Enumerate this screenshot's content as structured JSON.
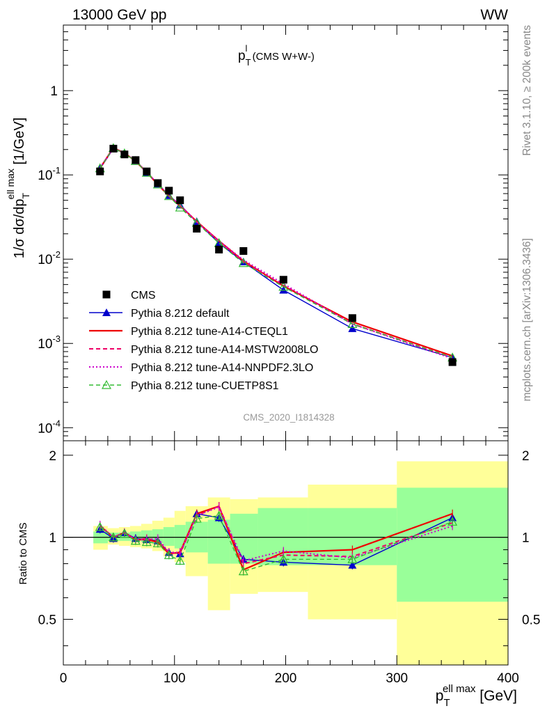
{
  "header": {
    "left": "13000 GeV pp",
    "right": "WW"
  },
  "side_texts": {
    "rivet": "Rivet 3.1.10, ≥ 200k events",
    "mcplots": "mcplots.cern.ch [arXiv:1306.3436]"
  },
  "plot_title": {
    "main": "p",
    "sub": "T",
    "sup": "l",
    "rest": " (CMS W+W-)"
  },
  "watermark": "CMS_2020_I1814328",
  "colors": {
    "cms": "#000000",
    "default": "#0000cc",
    "cteql1": "#ee0000",
    "mstw": "#ee0066",
    "nnpdf": "#cc00cc",
    "cuetp8s1": "#33bb33",
    "band_inner": "#99ff99",
    "band_outer": "#ffff99"
  },
  "chart_data": [
    {
      "type": "line",
      "yscale": "log",
      "ylabel": "1/σ dσ/dp_T^{ell max} [1/GeV]",
      "xlim": [
        0,
        400
      ],
      "ylim": [
        7e-05,
        6
      ],
      "y_tick_labels": [
        "1",
        "10^-1",
        "10^-2",
        "10^-3",
        "10^-4"
      ],
      "x": [
        33,
        45,
        55,
        65,
        75,
        85,
        95,
        105,
        120,
        140,
        162,
        198,
        260,
        350
      ],
      "series": [
        {
          "name": "CMS",
          "style": "data",
          "values": [
            0.11,
            0.205,
            0.175,
            0.15,
            0.11,
            0.08,
            0.065,
            0.05,
            0.023,
            0.013,
            0.0125,
            0.0057,
            0.002,
            0.0006
          ]
        },
        {
          "name": "Pythia 8.212 default",
          "style": "default",
          "values": [
            0.118,
            0.205,
            0.182,
            0.148,
            0.107,
            0.078,
            0.057,
            0.044,
            0.028,
            0.0155,
            0.0093,
            0.0043,
            0.0015,
            0.00068
          ]
        },
        {
          "name": "Pythia 8.212 tune-A14-CTEQL1",
          "style": "cteql1",
          "values": [
            0.12,
            0.21,
            0.181,
            0.146,
            0.107,
            0.077,
            0.056,
            0.043,
            0.028,
            0.0165,
            0.0095,
            0.0048,
            0.0018,
            0.00071
          ]
        },
        {
          "name": "Pythia 8.212 tune-A14-MSTW2008LO",
          "style": "mstw",
          "values": [
            0.121,
            0.208,
            0.181,
            0.146,
            0.108,
            0.078,
            0.057,
            0.043,
            0.0275,
            0.0164,
            0.0093,
            0.0049,
            0.0017,
            0.00068
          ]
        },
        {
          "name": "Pythia 8.212 tune-A14-NNPDF2.3LO",
          "style": "nnpdf",
          "values": [
            0.122,
            0.207,
            0.18,
            0.147,
            0.107,
            0.079,
            0.057,
            0.044,
            0.0276,
            0.0165,
            0.0098,
            0.0051,
            0.0017,
            0.00066
          ]
        },
        {
          "name": "Pythia 8.212 tune-CUETP8S1",
          "style": "cuetp8s1",
          "values": [
            0.12,
            0.208,
            0.18,
            0.146,
            0.106,
            0.077,
            0.056,
            0.041,
            0.027,
            0.0155,
            0.009,
            0.0047,
            0.0017,
            0.00068
          ]
        }
      ]
    },
    {
      "type": "line",
      "ylabel": "Ratio to CMS",
      "xlabel": "p_T^{ell max} [GeV]",
      "xlim": [
        0,
        400
      ],
      "ylim": [
        0.34,
        2.26
      ],
      "x_tick_labels": [
        "0",
        "100",
        "200",
        "300",
        "400"
      ],
      "y_tick_labels": [
        "0.5",
        "1",
        "2"
      ],
      "x": [
        33,
        45,
        55,
        65,
        75,
        85,
        95,
        105,
        120,
        140,
        162,
        198,
        260,
        350
      ],
      "bands": [
        {
          "edges": [
            27,
            40,
            50,
            60,
            70,
            80,
            90,
            100,
            110,
            130,
            150,
            175,
            220,
            300,
            400
          ],
          "inner_low": [
            0.95,
            0.97,
            0.97,
            0.97,
            0.96,
            0.95,
            0.93,
            0.91,
            0.88,
            0.8,
            0.8,
            0.79,
            0.79,
            0.58
          ],
          "inner_high": [
            1.05,
            1.04,
            1.04,
            1.05,
            1.06,
            1.07,
            1.09,
            1.11,
            1.14,
            1.16,
            1.22,
            1.28,
            1.28,
            1.52
          ],
          "outer_low": [
            0.9,
            0.94,
            0.93,
            0.92,
            0.91,
            0.89,
            0.85,
            0.81,
            0.72,
            0.54,
            0.62,
            0.63,
            0.5,
            0.34
          ],
          "outer_high": [
            1.1,
            1.08,
            1.09,
            1.1,
            1.12,
            1.15,
            1.18,
            1.25,
            1.3,
            1.4,
            1.38,
            1.4,
            1.56,
            1.9
          ]
        }
      ],
      "series": [
        {
          "name": "Pythia 8.212 default",
          "style": "default",
          "values": [
            1.07,
            0.99,
            1.04,
            0.99,
            0.98,
            0.97,
            0.88,
            0.87,
            1.22,
            1.18,
            0.83,
            0.81,
            0.79,
            1.18
          ]
        },
        {
          "name": "Pythia 8.212 tune-A14-CTEQL1",
          "style": "cteql1",
          "values": [
            1.1,
            1.0,
            1.04,
            0.98,
            0.98,
            0.96,
            0.87,
            0.88,
            1.22,
            1.3,
            0.76,
            0.88,
            0.9,
            1.22
          ]
        },
        {
          "name": "Pythia 8.212 tune-A14-MSTW2008LO",
          "style": "mstw",
          "values": [
            1.1,
            1.0,
            1.04,
            0.98,
            0.99,
            0.97,
            0.88,
            0.87,
            1.2,
            1.3,
            0.8,
            0.86,
            0.85,
            1.13
          ]
        },
        {
          "name": "Pythia 8.212 tune-A14-NNPDF2.3LO",
          "style": "nnpdf",
          "values": [
            1.11,
            1.0,
            1.04,
            0.98,
            0.98,
            0.99,
            0.88,
            0.88,
            1.2,
            1.29,
            0.82,
            0.89,
            0.84,
            1.1
          ]
        },
        {
          "name": "Pythia 8.212 tune-CUETP8S1",
          "style": "cuetp8s1",
          "values": [
            1.09,
            1.0,
            1.03,
            0.97,
            0.96,
            0.95,
            0.86,
            0.82,
            1.17,
            1.2,
            0.75,
            0.83,
            0.83,
            1.14
          ]
        }
      ]
    }
  ]
}
